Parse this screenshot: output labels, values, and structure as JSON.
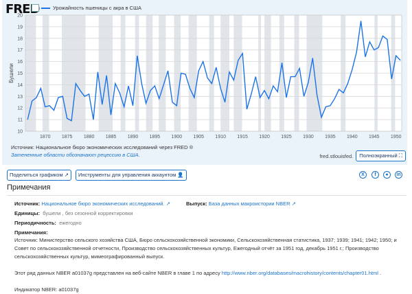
{
  "header": {
    "logo": "FRED",
    "legend": "Урожайность пшеницы с акра в США"
  },
  "chart_data": {
    "type": "line",
    "title": "Урожайность пшеницы с акра в США",
    "ylabel": "Бушели",
    "ylim": [
      10,
      20
    ],
    "yticks": [
      10,
      11,
      12,
      13,
      14,
      15,
      16,
      17,
      18,
      19,
      20
    ],
    "xlim": [
      1865.5,
      1951.3
    ],
    "xticks": [
      1870,
      1875,
      1880,
      1885,
      1890,
      1895,
      1900,
      1905,
      1910,
      1915,
      1920,
      1925,
      1930,
      1935,
      1940,
      1945,
      1950
    ],
    "grid": true,
    "color": "#1a73e8",
    "series": [
      {
        "name": "Урожайность пшеницы с акра в США",
        "x_start": 1866,
        "values": [
          11.0,
          12.6,
          12.9,
          13.7,
          12.1,
          12.2,
          11.8,
          12.9,
          13.0,
          11.1,
          10.9,
          14.1,
          13.5,
          13.0,
          13.2,
          11.0,
          15.1,
          12.3,
          14.8,
          11.4,
          14.1,
          13.3,
          12.1,
          13.9,
          12.2,
          16.5,
          14.1,
          12.4,
          13.5,
          13.9,
          12.8,
          14.0,
          15.2,
          12.5,
          12.2,
          15.0,
          14.9,
          13.7,
          12.9,
          15.2,
          16.0,
          14.6,
          14.1,
          15.5,
          13.7,
          12.5,
          15.1,
          14.4,
          16.1,
          16.7,
          11.9,
          13.2,
          14.7,
          12.9,
          13.5,
          12.8,
          13.9,
          13.4,
          15.9,
          12.9,
          14.7,
          14.7,
          15.4,
          13.0,
          14.2,
          16.3,
          13.1,
          11.2,
          12.1,
          12.2,
          12.8,
          13.6,
          13.3,
          14.1,
          15.3,
          16.8,
          19.5,
          16.4,
          17.7,
          17.0,
          17.2,
          18.2,
          17.9,
          14.5,
          16.5,
          16.1
        ]
      }
    ],
    "recessions": [
      [
        1865.5,
        1867.9
      ],
      [
        1869.4,
        1870.9
      ],
      [
        1873.8,
        1879.2
      ],
      [
        1882.2,
        1885.4
      ],
      [
        1887.2,
        1888.3
      ],
      [
        1890.5,
        1891.4
      ],
      [
        1893.0,
        1894.5
      ],
      [
        1895.9,
        1897.5
      ],
      [
        1899.4,
        1900.9
      ],
      [
        1902.7,
        1904.6
      ],
      [
        1907.4,
        1908.5
      ],
      [
        1910.0,
        1912.0
      ],
      [
        1913.0,
        1914.9
      ],
      [
        1918.6,
        1919.2
      ],
      [
        1920.0,
        1921.5
      ],
      [
        1923.4,
        1924.5
      ],
      [
        1926.8,
        1927.9
      ],
      [
        1929.6,
        1933.2
      ],
      [
        1937.4,
        1938.5
      ],
      [
        1945.1,
        1945.8
      ],
      [
        1948.9,
        1949.8
      ]
    ]
  },
  "footer": {
    "source": "Источник: Национальное бюро экономических исследований через FRED ®",
    "recession_note": "Затененные области обозначают рецессию в США.",
    "site": "fred.stlouisfed.",
    "fullscreen": "Полноэкранный"
  },
  "actions": {
    "share": "Поделиться графиком",
    "account": "Инструменты для управления аккаунтом"
  },
  "social": [
    "x",
    "facebook",
    "reddit",
    "linkedin"
  ],
  "notes": {
    "title": "Примечания",
    "source_label": "Источник:",
    "source_value": "Национальное бюро экономических исследований.",
    "release_label": "Выпуск:",
    "release_value": "База данных макроистории NBER",
    "units_label": "Единицы:",
    "units_value": "бушели , без сезонной корректировки",
    "freq_label": "Периодичность:",
    "freq_value": "ежегодно",
    "notes_label": "Примечания:",
    "notes_text": "Источник: Министерство сельского хозяйства США, Бюро сельскохозяйственной экономики, Сельскохозяйственная статистика, 1937; 1939; 1941; 1942; 1950; и Совет по сельскохозяйственной отчетности, Производство сельскохозяйственных культур, Ежегодный отчёт за 1951 год, декабрь 1951 г.; Производство сельскохозяйственных культур, мимеографированный выпуск.",
    "nber_text": "Этот ряд данных NBER a01037g представлен на веб-сайте NBER в главе 1 по адресу",
    "nber_link": "http://www.nber.org/databases/macrohistory/contents/chapter01.html",
    "nber_end": " .",
    "cut_line": "Индикатор NBER: a01037g"
  }
}
